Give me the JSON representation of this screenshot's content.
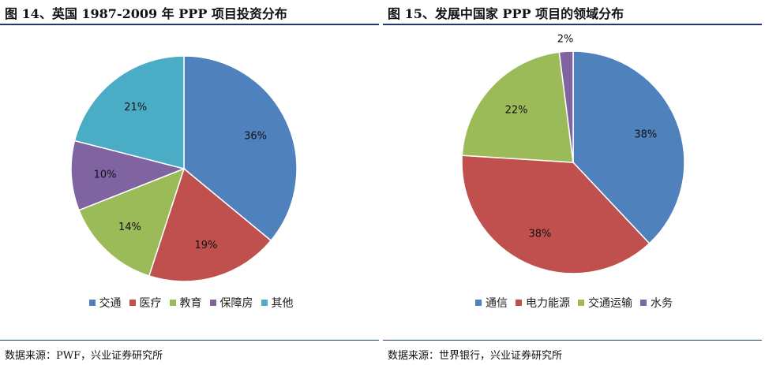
{
  "chart_data": [
    {
      "type": "pie",
      "title": "图 14、英国 1987-2009 年 PPP 项目投资分布",
      "source": "数据来源：PWF，兴业证券研究所",
      "categories": [
        "交通",
        "医疗",
        "教育",
        "保障房",
        "其他"
      ],
      "values": [
        36,
        19,
        14,
        10,
        21
      ],
      "labels": [
        "36%",
        "19%",
        "14%",
        "10%",
        "21%"
      ],
      "colors": [
        "#4f81bd",
        "#c0504d",
        "#9bbb59",
        "#8064a2",
        "#4bacc6"
      ],
      "legend": "bottom"
    },
    {
      "type": "pie",
      "title": "图 15、发展中国家 PPP  项目的领域分布",
      "source": "数据来源：世界银行，兴业证券研究所",
      "categories": [
        "通信",
        "电力能源",
        "交通运输",
        "水务"
      ],
      "values": [
        38,
        38,
        22,
        2
      ],
      "labels": [
        "38%",
        "38%",
        "22%",
        "2%"
      ],
      "colors": [
        "#4f81bd",
        "#c0504d",
        "#9bbb59",
        "#8064a2"
      ],
      "legend": "bottom"
    }
  ]
}
